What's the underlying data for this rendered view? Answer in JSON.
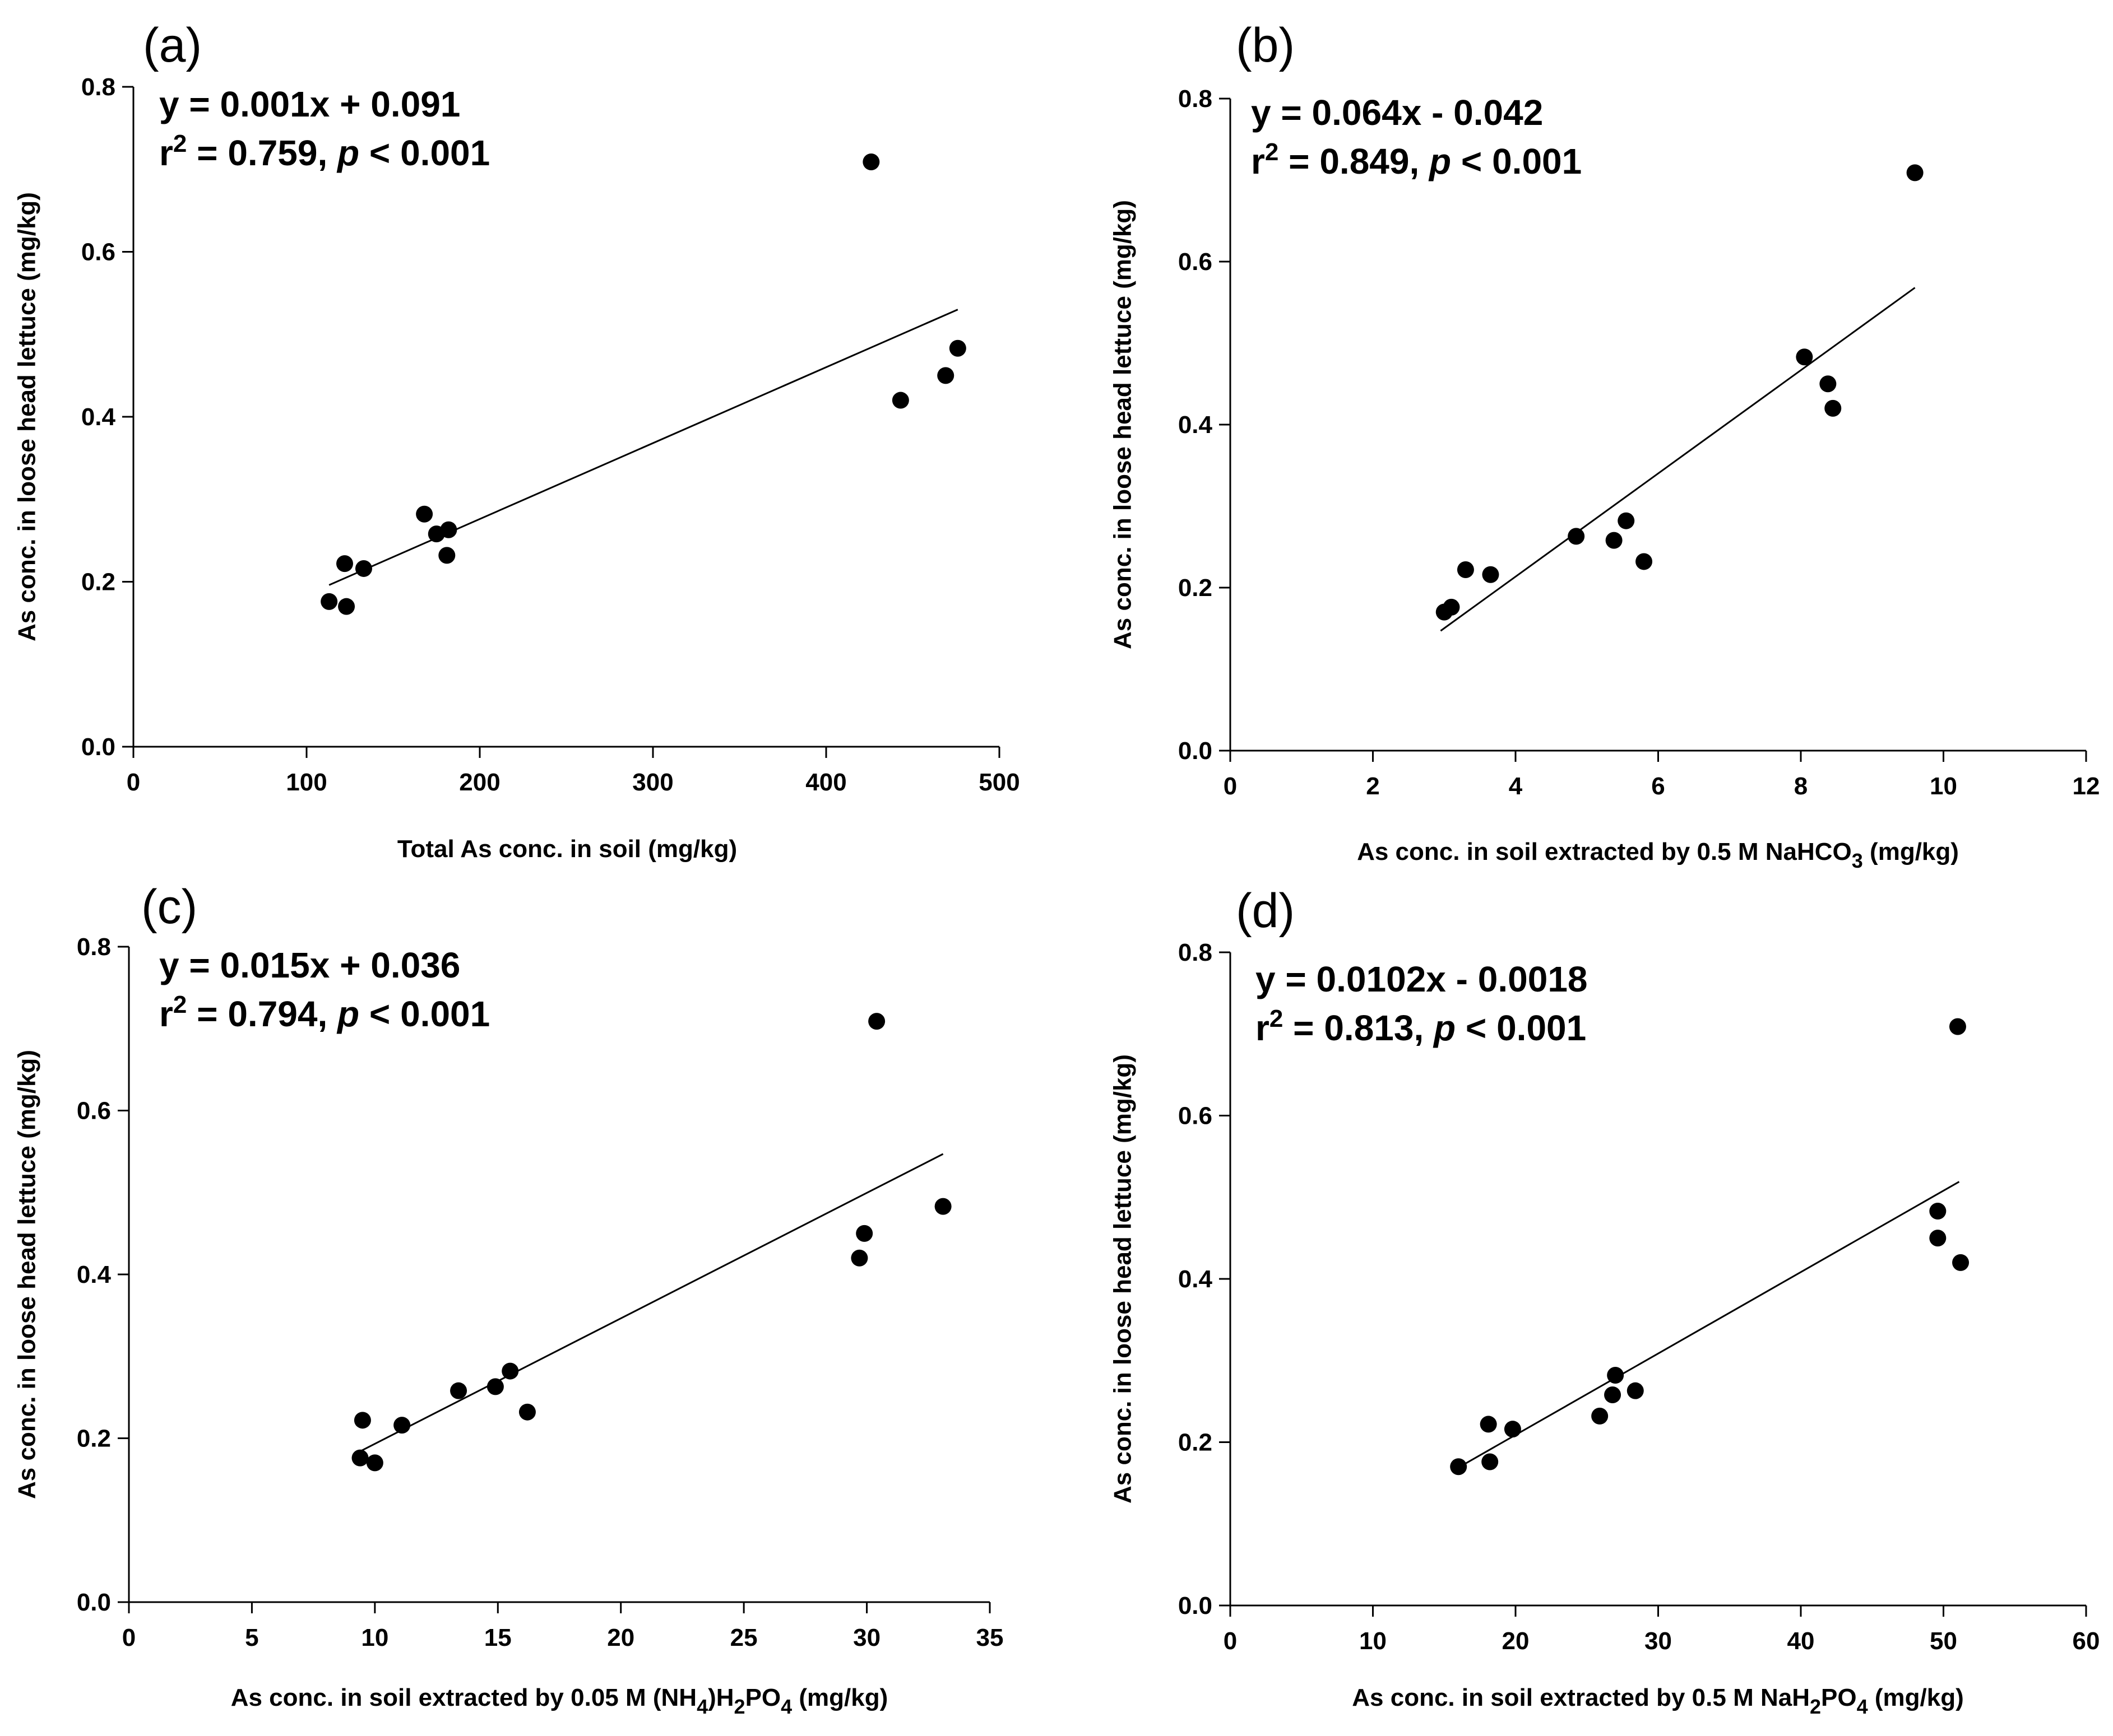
{
  "chart_data": [
    {
      "type": "scatter",
      "panel_label": "(a)",
      "xlabel": "Total As conc. in soil (mg/kg)",
      "ylabel": "As conc. in loose head lettuce (mg/kg)",
      "xlim": [
        0,
        500
      ],
      "ylim": [
        0,
        0.8
      ],
      "xticks": [
        "0",
        "100",
        "200",
        "300",
        "400",
        "500"
      ],
      "yticks": [
        "0.0",
        "0.2",
        "0.4",
        "0.6",
        "0.8"
      ],
      "equation": "y = 0.001x + 0.091",
      "r2_prefix": "r",
      "r2_exp": "2",
      "r2_value": " = 0.759, ",
      "p_letter": "p",
      "p_value": " < 0.001",
      "points": [
        [
          113,
          0.176
        ],
        [
          122,
          0.222
        ],
        [
          123,
          0.17
        ],
        [
          133,
          0.216
        ],
        [
          168,
          0.282
        ],
        [
          175,
          0.258
        ],
        [
          181,
          0.232
        ],
        [
          182,
          0.263
        ],
        [
          426,
          0.709
        ],
        [
          443,
          0.42
        ],
        [
          469,
          0.45
        ],
        [
          476,
          0.483
        ]
      ],
      "fit": {
        "x": [
          113,
          476
        ],
        "y": [
          0.196,
          0.53
        ]
      }
    },
    {
      "type": "scatter",
      "panel_label": "(b)",
      "xlabel_pre": "As conc. in soil extracted by 0.5 M NaHCO",
      "xlabel_sub": "3",
      "xlabel_post": " (mg/kg)",
      "ylabel": "As conc. in loose head lettuce (mg/kg)",
      "xlim": [
        0,
        12
      ],
      "ylim": [
        0,
        0.8
      ],
      "xticks": [
        "0",
        "2",
        "4",
        "6",
        "8",
        "10",
        "12"
      ],
      "yticks": [
        "0.0",
        "0.2",
        "0.4",
        "0.6",
        "0.8"
      ],
      "equation": "y = 0.064x - 0.042",
      "r2_prefix": "r",
      "r2_exp": "2",
      "r2_value": " = 0.849, ",
      "p_letter": "p",
      "p_value": " < 0.001",
      "points": [
        [
          3.0,
          0.17
        ],
        [
          3.1,
          0.176
        ],
        [
          3.3,
          0.222
        ],
        [
          3.65,
          0.216
        ],
        [
          4.85,
          0.263
        ],
        [
          5.38,
          0.258
        ],
        [
          5.55,
          0.282
        ],
        [
          5.8,
          0.232
        ],
        [
          8.05,
          0.483
        ],
        [
          8.38,
          0.45
        ],
        [
          8.45,
          0.42
        ],
        [
          9.6,
          0.709
        ]
      ],
      "fit": {
        "x": [
          2.95,
          9.6
        ],
        "y": [
          0.147,
          0.568
        ]
      }
    },
    {
      "type": "scatter",
      "panel_label": "(c)",
      "xlabel_pre": "As conc. in soil extracted by 0.05 M (NH",
      "xlabel_sub": "4",
      "xlabel_mid": ")H",
      "xlabel_sub2": "2",
      "xlabel_mid2": "PO",
      "xlabel_sub3": "4",
      "xlabel_post": " (mg/kg)",
      "ylabel": "As conc. in loose head lettuce (mg/kg)",
      "xlim": [
        0,
        35
      ],
      "ylim": [
        0,
        0.8
      ],
      "xticks": [
        "0",
        "5",
        "10",
        "15",
        "20",
        "25",
        "30",
        "35"
      ],
      "yticks": [
        "0.0",
        "0.2",
        "0.4",
        "0.6",
        "0.8"
      ],
      "equation": "y = 0.015x + 0.036",
      "r2_prefix": "r",
      "r2_exp": "2",
      "r2_value": " = 0.794, ",
      "p_letter": "p",
      "p_value": " < 0.001",
      "points": [
        [
          9.4,
          0.176
        ],
        [
          9.5,
          0.222
        ],
        [
          10.0,
          0.17
        ],
        [
          11.1,
          0.216
        ],
        [
          13.4,
          0.258
        ],
        [
          14.9,
          0.263
        ],
        [
          15.5,
          0.282
        ],
        [
          16.2,
          0.232
        ],
        [
          29.7,
          0.42
        ],
        [
          29.9,
          0.45
        ],
        [
          30.4,
          0.709
        ],
        [
          33.1,
          0.483
        ]
      ],
      "fit": {
        "x": [
          9.2,
          33.1
        ],
        "y": [
          0.181,
          0.547
        ]
      }
    },
    {
      "type": "scatter",
      "panel_label": "(d)",
      "xlabel_pre": "As conc. in soil extracted by 0.5 M NaH",
      "xlabel_sub": "2",
      "xlabel_mid": "PO",
      "xlabel_sub2": "4",
      "xlabel_post": " (mg/kg)",
      "ylabel": "As conc. in loose head lettuce (mg/kg)",
      "xlim": [
        0,
        60
      ],
      "ylim": [
        0,
        0.8
      ],
      "xticks": [
        "0",
        "10",
        "20",
        "30",
        "40",
        "50",
        "60"
      ],
      "yticks": [
        "0.0",
        "0.2",
        "0.4",
        "0.6",
        "0.8"
      ],
      "equation": "y = 0.0102x - 0.0018",
      "r2_prefix": "r",
      "r2_exp": "2",
      "r2_value": " = 0.813, ",
      "p_letter": "p",
      "p_value": " < 0.001",
      "points": [
        [
          16.0,
          0.17
        ],
        [
          18.1,
          0.222
        ],
        [
          18.2,
          0.176
        ],
        [
          19.8,
          0.216
        ],
        [
          25.9,
          0.232
        ],
        [
          26.8,
          0.258
        ],
        [
          27.0,
          0.282
        ],
        [
          28.4,
          0.263
        ],
        [
          49.6,
          0.483
        ],
        [
          49.6,
          0.45
        ],
        [
          51.0,
          0.709
        ],
        [
          51.2,
          0.42
        ]
      ],
      "fit": {
        "x": [
          15.9,
          51.1
        ],
        "y": [
          0.168,
          0.519
        ]
      }
    }
  ]
}
